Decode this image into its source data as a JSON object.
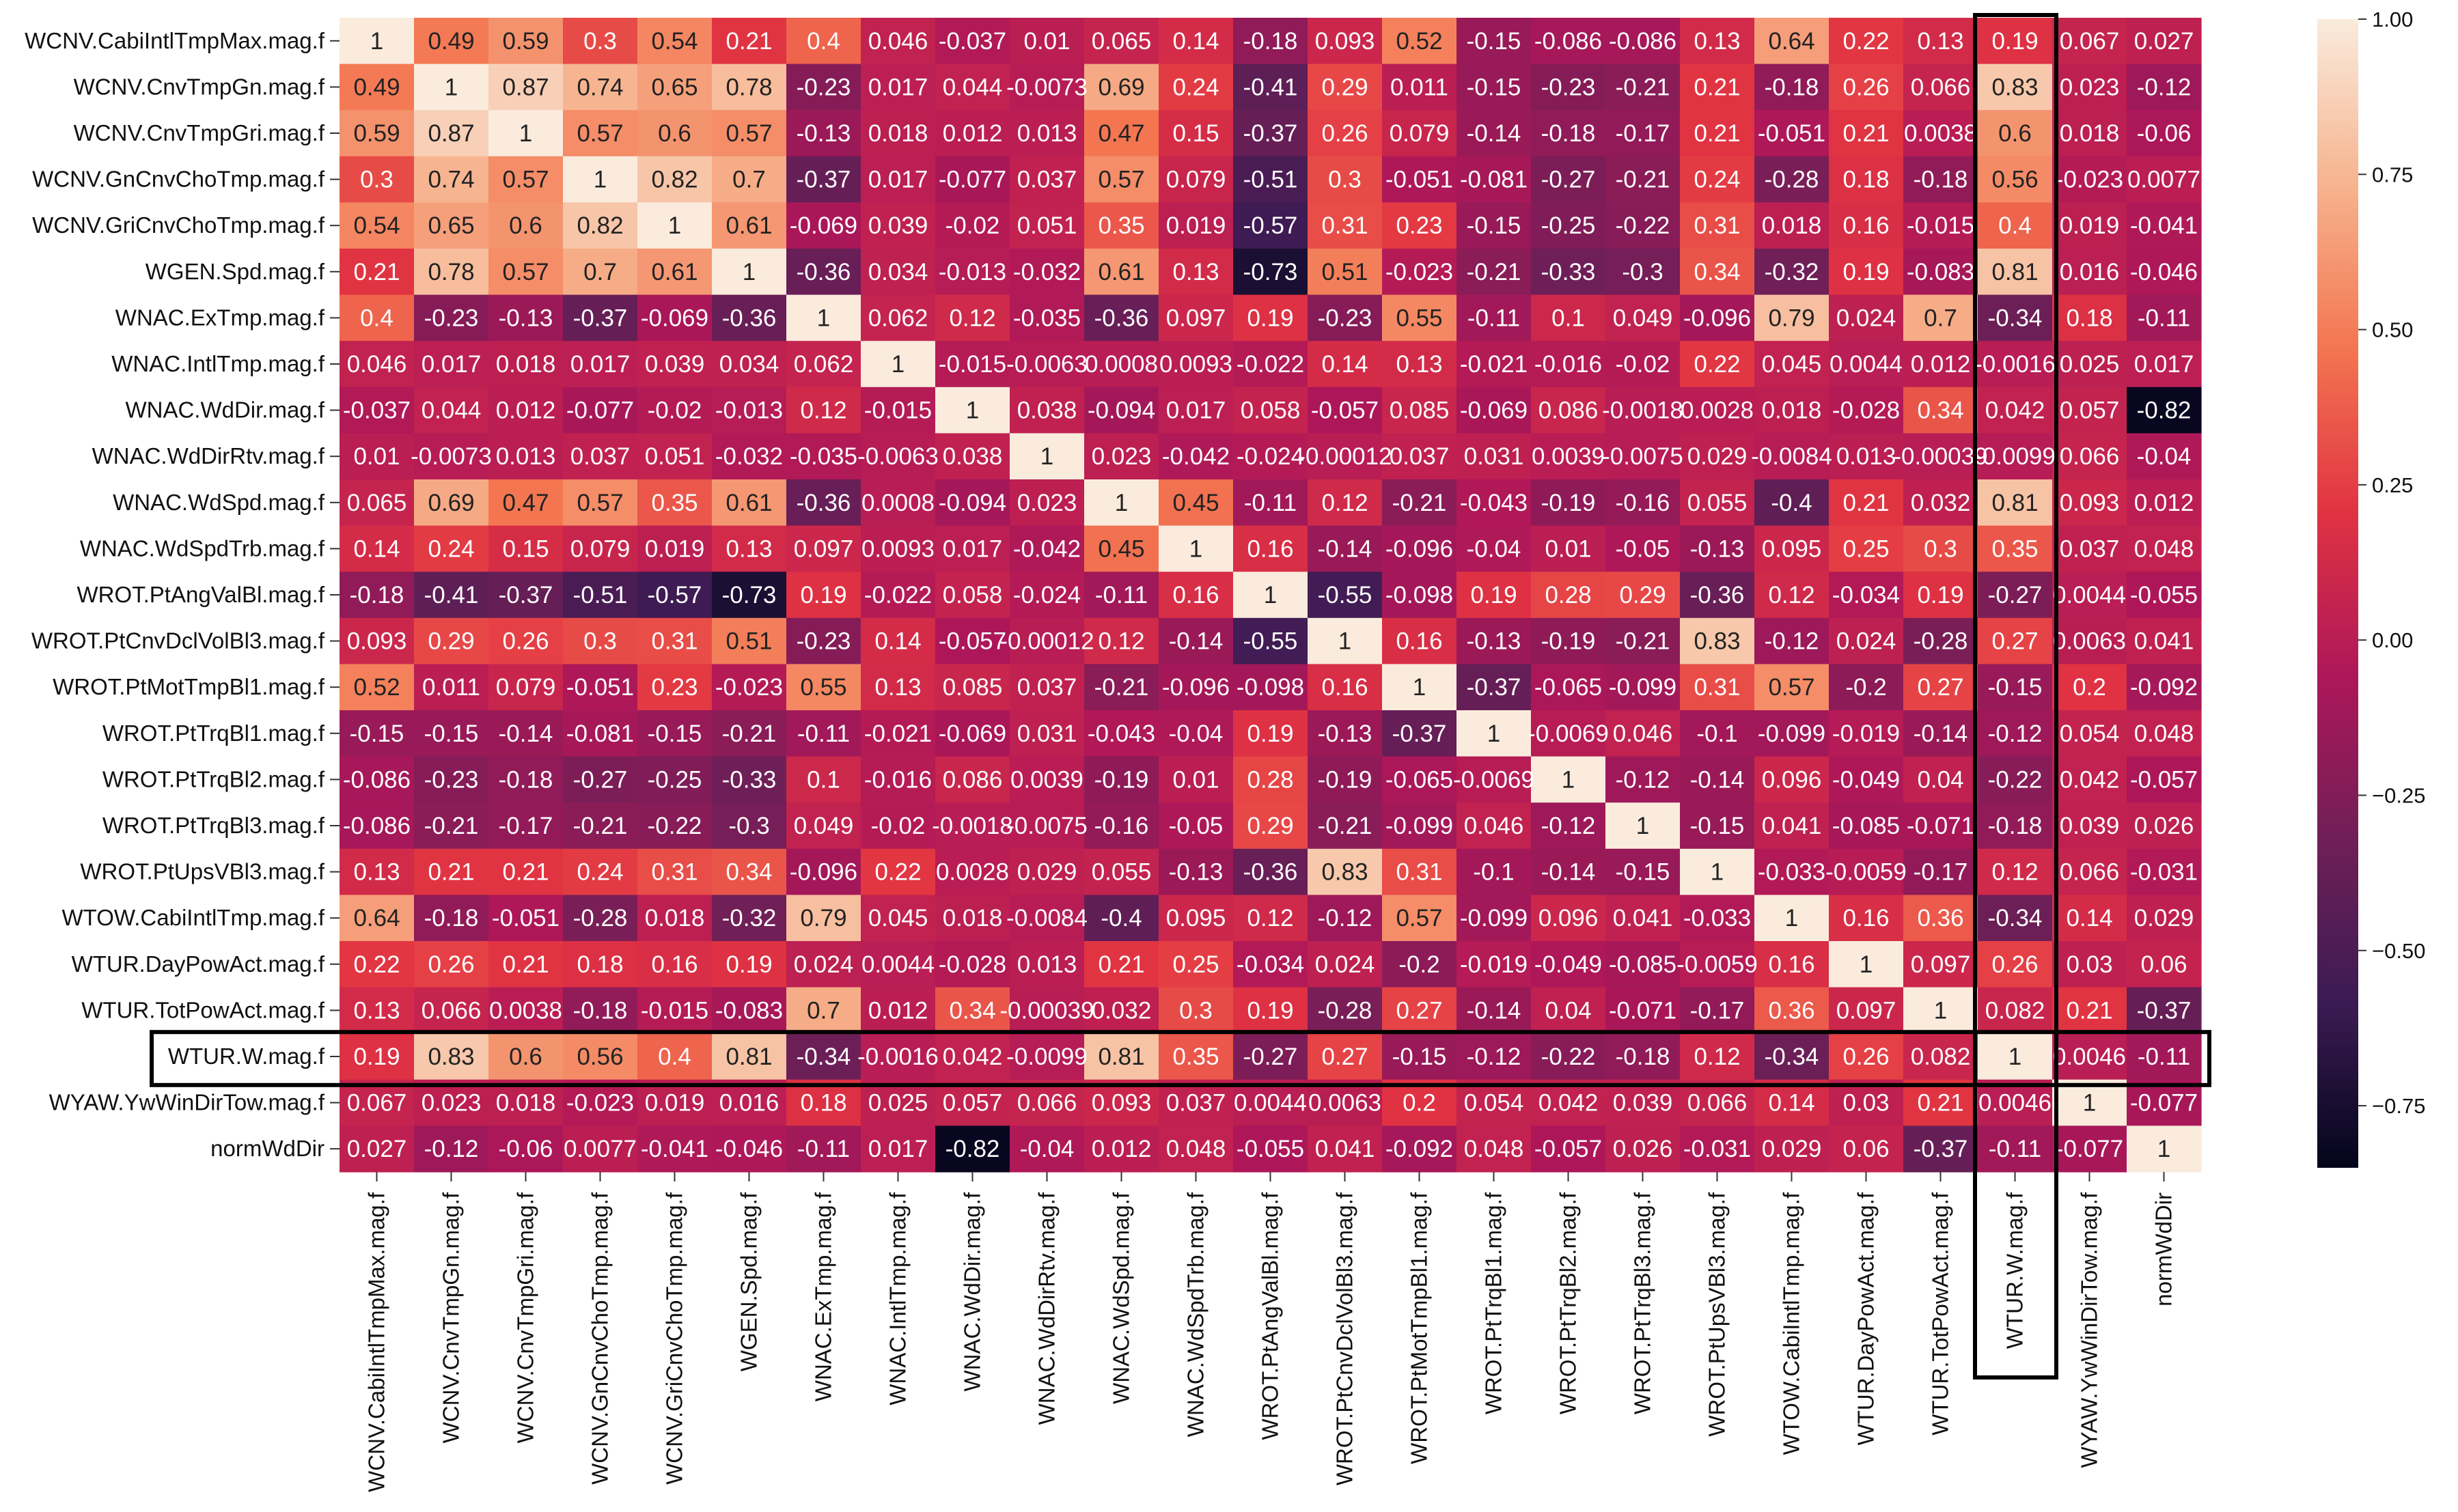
{
  "chart_data": {
    "type": "heatmap",
    "title": "",
    "xlabel": "",
    "ylabel": "",
    "labels": [
      "WCNV.CabiIntlTmpMax.mag.f",
      "WCNV.CnvTmpGn.mag.f",
      "WCNV.CnvTmpGri.mag.f",
      "WCNV.GnCnvChoTmp.mag.f",
      "WCNV.GriCnvChoTmp.mag.f",
      "WGEN.Spd.mag.f",
      "WNAC.ExTmp.mag.f",
      "WNAC.IntlTmp.mag.f",
      "WNAC.WdDir.mag.f",
      "WNAC.WdDirRtv.mag.f",
      "WNAC.WdSpd.mag.f",
      "WNAC.WdSpdTrb.mag.f",
      "WROT.PtAngValBl.mag.f",
      "WROT.PtCnvDclVolBl3.mag.f",
      "WROT.PtMotTmpBl1.mag.f",
      "WROT.PtTrqBl1.mag.f",
      "WROT.PtTrqBl2.mag.f",
      "WROT.PtTrqBl3.mag.f",
      "WROT.PtUpsVBl3.mag.f",
      "WTOW.CabiIntlTmp.mag.f",
      "WTUR.DayPowAct.mag.f",
      "WTUR.TotPowAct.mag.f",
      "WTUR.W.mag.f",
      "WYAW.YwWinDirTow.mag.f",
      "normWdDir"
    ],
    "matrix": [
      [
        1,
        0.49,
        0.59,
        0.3,
        0.54,
        0.21,
        0.4,
        0.046,
        -0.037,
        0.01,
        0.065,
        0.14,
        -0.18,
        0.093,
        0.52,
        -0.15,
        -0.086,
        -0.086,
        0.13,
        0.64,
        0.22,
        0.13,
        0.19,
        0.067,
        0.027
      ],
      [
        0.49,
        1,
        0.87,
        0.74,
        0.65,
        0.78,
        -0.23,
        0.017,
        0.044,
        -0.0073,
        0.69,
        0.24,
        -0.41,
        0.29,
        0.011,
        -0.15,
        -0.23,
        -0.21,
        0.21,
        -0.18,
        0.26,
        0.066,
        0.83,
        0.023,
        -0.12
      ],
      [
        0.59,
        0.87,
        1,
        0.57,
        0.6,
        0.57,
        -0.13,
        0.018,
        0.012,
        0.013,
        0.47,
        0.15,
        -0.37,
        0.26,
        0.079,
        -0.14,
        -0.18,
        -0.17,
        0.21,
        -0.051,
        0.21,
        0.0038,
        0.6,
        0.018,
        -0.06
      ],
      [
        0.3,
        0.74,
        0.57,
        1,
        0.82,
        0.7,
        -0.37,
        0.017,
        -0.077,
        0.037,
        0.57,
        0.079,
        -0.51,
        0.3,
        -0.051,
        -0.081,
        -0.27,
        -0.21,
        0.24,
        -0.28,
        0.18,
        -0.18,
        0.56,
        -0.023,
        0.0077
      ],
      [
        0.54,
        0.65,
        0.6,
        0.82,
        1,
        0.61,
        -0.069,
        0.039,
        -0.02,
        0.051,
        0.35,
        0.019,
        -0.57,
        0.31,
        0.23,
        -0.15,
        -0.25,
        -0.22,
        0.31,
        0.018,
        0.16,
        -0.015,
        0.4,
        0.019,
        -0.041
      ],
      [
        0.21,
        0.78,
        0.57,
        0.7,
        0.61,
        1,
        -0.36,
        0.034,
        -0.013,
        -0.032,
        0.61,
        0.13,
        -0.73,
        0.51,
        -0.023,
        -0.21,
        -0.33,
        -0.3,
        0.34,
        -0.32,
        0.19,
        -0.083,
        0.81,
        0.016,
        -0.046
      ],
      [
        0.4,
        -0.23,
        -0.13,
        -0.37,
        -0.069,
        -0.36,
        1,
        0.062,
        0.12,
        -0.035,
        -0.36,
        0.097,
        0.19,
        -0.23,
        0.55,
        -0.11,
        0.1,
        0.049,
        -0.096,
        0.79,
        0.024,
        0.7,
        -0.34,
        0.18,
        -0.11
      ],
      [
        0.046,
        0.017,
        0.018,
        0.017,
        0.039,
        0.034,
        0.062,
        1,
        -0.015,
        -0.0063,
        0.0008,
        0.0093,
        -0.022,
        0.14,
        0.13,
        -0.021,
        -0.016,
        -0.02,
        0.22,
        0.045,
        0.0044,
        0.012,
        -0.0016,
        0.025,
        0.017
      ],
      [
        -0.037,
        0.044,
        0.012,
        -0.077,
        -0.02,
        -0.013,
        0.12,
        -0.015,
        1,
        0.038,
        -0.094,
        0.017,
        0.058,
        -0.057,
        0.085,
        -0.069,
        0.086,
        -0.0018,
        0.0028,
        0.018,
        -0.028,
        0.34,
        0.042,
        0.057,
        -0.82
      ],
      [
        0.01,
        -0.0073,
        0.013,
        0.037,
        0.051,
        -0.032,
        -0.035,
        -0.0063,
        0.038,
        1,
        0.023,
        -0.042,
        -0.024,
        -0.00012,
        0.037,
        0.031,
        0.0039,
        -0.0075,
        0.029,
        -0.0084,
        0.013,
        -0.00039,
        -0.0099,
        0.066,
        -0.04
      ],
      [
        0.065,
        0.69,
        0.47,
        0.57,
        0.35,
        0.61,
        -0.36,
        0.0008,
        -0.094,
        0.023,
        1,
        0.45,
        -0.11,
        0.12,
        -0.21,
        -0.043,
        -0.19,
        -0.16,
        0.055,
        -0.4,
        0.21,
        0.032,
        0.81,
        0.093,
        0.012
      ],
      [
        0.14,
        0.24,
        0.15,
        0.079,
        0.019,
        0.13,
        0.097,
        0.0093,
        0.017,
        -0.042,
        0.45,
        1,
        0.16,
        -0.14,
        -0.096,
        -0.04,
        0.01,
        -0.05,
        -0.13,
        0.095,
        0.25,
        0.3,
        0.35,
        0.037,
        0.048
      ],
      [
        -0.18,
        -0.41,
        -0.37,
        -0.51,
        -0.57,
        -0.73,
        0.19,
        -0.022,
        0.058,
        -0.024,
        -0.11,
        0.16,
        1,
        -0.55,
        -0.098,
        0.19,
        0.28,
        0.29,
        -0.36,
        0.12,
        -0.034,
        0.19,
        -0.27,
        0.0044,
        -0.055
      ],
      [
        0.093,
        0.29,
        0.26,
        0.3,
        0.31,
        0.51,
        -0.23,
        0.14,
        -0.057,
        -0.00012,
        0.12,
        -0.14,
        -0.55,
        1,
        0.16,
        -0.13,
        -0.19,
        -0.21,
        0.83,
        -0.12,
        0.024,
        -0.28,
        0.27,
        0.0063,
        0.041
      ],
      [
        0.52,
        0.011,
        0.079,
        -0.051,
        0.23,
        -0.023,
        0.55,
        0.13,
        0.085,
        0.037,
        -0.21,
        -0.096,
        -0.098,
        0.16,
        1,
        -0.37,
        -0.065,
        -0.099,
        0.31,
        0.57,
        -0.2,
        0.27,
        -0.15,
        0.2,
        -0.092
      ],
      [
        -0.15,
        -0.15,
        -0.14,
        -0.081,
        -0.15,
        -0.21,
        -0.11,
        -0.021,
        -0.069,
        0.031,
        -0.043,
        -0.04,
        0.19,
        -0.13,
        -0.37,
        1,
        -0.0069,
        0.046,
        -0.1,
        -0.099,
        -0.019,
        -0.14,
        -0.12,
        0.054,
        0.048
      ],
      [
        -0.086,
        -0.23,
        -0.18,
        -0.27,
        -0.25,
        -0.33,
        0.1,
        -0.016,
        0.086,
        0.0039,
        -0.19,
        0.01,
        0.28,
        -0.19,
        -0.065,
        -0.0069,
        1,
        -0.12,
        -0.14,
        0.096,
        -0.049,
        0.04,
        -0.22,
        0.042,
        -0.057
      ],
      [
        -0.086,
        -0.21,
        -0.17,
        -0.21,
        -0.22,
        -0.3,
        0.049,
        -0.02,
        -0.0018,
        -0.0075,
        -0.16,
        -0.05,
        0.29,
        -0.21,
        -0.099,
        0.046,
        -0.12,
        1,
        -0.15,
        0.041,
        -0.085,
        -0.071,
        -0.18,
        0.039,
        0.026
      ],
      [
        0.13,
        0.21,
        0.21,
        0.24,
        0.31,
        0.34,
        -0.096,
        0.22,
        0.0028,
        0.029,
        0.055,
        -0.13,
        -0.36,
        0.83,
        0.31,
        -0.1,
        -0.14,
        -0.15,
        1,
        -0.033,
        -0.0059,
        -0.17,
        0.12,
        0.066,
        -0.031
      ],
      [
        0.64,
        -0.18,
        -0.051,
        -0.28,
        0.018,
        -0.32,
        0.79,
        0.045,
        0.018,
        -0.0084,
        -0.4,
        0.095,
        0.12,
        -0.12,
        0.57,
        -0.099,
        0.096,
        0.041,
        -0.033,
        1,
        0.16,
        0.36,
        -0.34,
        0.14,
        0.029
      ],
      [
        0.22,
        0.26,
        0.21,
        0.18,
        0.16,
        0.19,
        0.024,
        0.0044,
        -0.028,
        0.013,
        0.21,
        0.25,
        -0.034,
        0.024,
        -0.2,
        -0.019,
        -0.049,
        -0.085,
        -0.0059,
        0.16,
        1,
        0.097,
        0.26,
        0.03,
        0.06
      ],
      [
        0.13,
        0.066,
        0.0038,
        -0.18,
        -0.015,
        -0.083,
        0.7,
        0.012,
        0.34,
        -0.00039,
        0.032,
        0.3,
        0.19,
        -0.28,
        0.27,
        -0.14,
        0.04,
        -0.071,
        -0.17,
        0.36,
        0.097,
        1,
        0.082,
        0.21,
        -0.37
      ],
      [
        0.19,
        0.83,
        0.6,
        0.56,
        0.4,
        0.81,
        -0.34,
        -0.0016,
        0.042,
        -0.0099,
        0.81,
        0.35,
        -0.27,
        0.27,
        -0.15,
        -0.12,
        -0.22,
        -0.18,
        0.12,
        -0.34,
        0.26,
        0.082,
        1,
        0.0046,
        -0.11
      ],
      [
        0.067,
        0.023,
        0.018,
        -0.023,
        0.019,
        0.016,
        0.18,
        0.025,
        0.057,
        0.066,
        0.093,
        0.037,
        0.0044,
        0.0063,
        0.2,
        0.054,
        0.042,
        0.039,
        0.066,
        0.14,
        0.03,
        0.21,
        0.0046,
        1,
        -0.077
      ],
      [
        0.027,
        -0.12,
        -0.06,
        0.0077,
        -0.041,
        -0.046,
        -0.11,
        0.017,
        -0.82,
        -0.04,
        0.012,
        0.048,
        -0.055,
        0.041,
        -0.092,
        0.048,
        -0.057,
        0.026,
        -0.031,
        0.029,
        0.06,
        -0.37,
        -0.11,
        -0.077,
        1
      ]
    ],
    "colorbar": {
      "range": [
        -0.85,
        1.0
      ],
      "ticks": [
        1.0,
        0.75,
        0.5,
        0.25,
        0.0,
        -0.25,
        -0.5,
        -0.75
      ],
      "tick_labels": [
        "1.00",
        "0.75",
        "0.50",
        "0.25",
        "0.00",
        "−0.25",
        "−0.50",
        "−0.75"
      ],
      "colormap": "rocket",
      "stops": [
        "#03051a",
        "#3b1b53",
        "#701f57",
        "#ad1759",
        "#e13342",
        "#f37651",
        "#f6b48f",
        "#faebdd"
      ]
    },
    "highlight": {
      "row": "WTUR.W.mag.f",
      "column": "WTUR.W.mag.f",
      "color": "#000000"
    }
  }
}
